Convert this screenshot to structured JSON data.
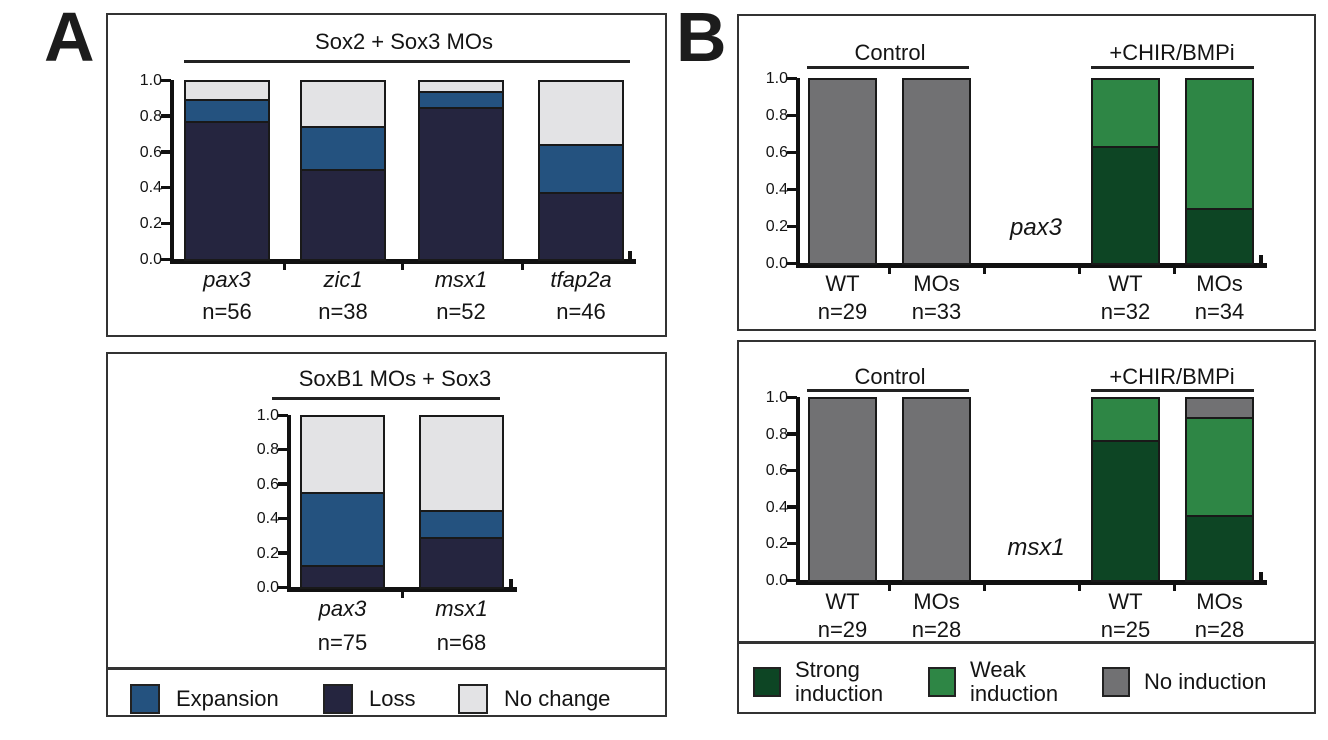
{
  "panels": {
    "a": {
      "letter": "A"
    },
    "b": {
      "letter": "B"
    }
  },
  "colors": {
    "expansion": "#24527f",
    "loss": "#25253f",
    "no_change": "#e3e3e5",
    "strong_induction": "#0d4524",
    "weak_induction": "#2e8645",
    "no_induction": "#717173"
  },
  "legend_a": {
    "items": [
      {
        "key": "expansion",
        "label": "Expansion"
      },
      {
        "key": "loss",
        "label": "Loss"
      },
      {
        "key": "no_change",
        "label": "No change"
      }
    ]
  },
  "legend_b": {
    "items": [
      {
        "key": "strong_induction",
        "line1": "Strong",
        "line2": "induction"
      },
      {
        "key": "weak_induction",
        "line1": "Weak",
        "line2": "induction"
      },
      {
        "key": "no_induction",
        "line1": "No induction",
        "line2": ""
      }
    ]
  },
  "chart_data": [
    {
      "id": "a1",
      "type": "bar",
      "stacked": true,
      "title": "Sox2 + Sox3 MOs",
      "ylim": [
        0,
        1
      ],
      "yticks": [
        "1.0",
        "0.8",
        "0.6",
        "0.4",
        "0.2",
        "0.0"
      ],
      "grid": false,
      "categories": [
        "pax3",
        "zic1",
        "msx1",
        "tfap2a"
      ],
      "italic_categories": true,
      "n_labels": [
        "n=56",
        "n=38",
        "n=52",
        "n=46"
      ],
      "series": [
        {
          "name": "Loss",
          "key": "loss",
          "values": [
            0.77,
            0.5,
            0.85,
            0.37
          ]
        },
        {
          "name": "Expansion",
          "key": "expansion",
          "values": [
            0.12,
            0.24,
            0.09,
            0.27
          ]
        },
        {
          "name": "No change",
          "key": "no_change",
          "values": [
            0.11,
            0.26,
            0.06,
            0.36
          ]
        }
      ]
    },
    {
      "id": "a2",
      "type": "bar",
      "stacked": true,
      "title": "SoxB1 MOs + Sox3",
      "ylim": [
        0,
        1
      ],
      "yticks": [
        "1.0",
        "0.8",
        "0.6",
        "0.4",
        "0.2",
        "0.0"
      ],
      "grid": false,
      "categories": [
        "pax3",
        "msx1"
      ],
      "italic_categories": true,
      "n_labels": [
        "n=75",
        "n=68"
      ],
      "series": [
        {
          "name": "Loss",
          "key": "loss",
          "values": [
            0.12,
            0.28
          ]
        },
        {
          "name": "Expansion",
          "key": "expansion",
          "values": [
            0.43,
            0.16
          ]
        },
        {
          "name": "No change",
          "key": "no_change",
          "values": [
            0.45,
            0.56
          ]
        }
      ]
    },
    {
      "id": "b1",
      "type": "bar",
      "stacked": true,
      "gene_label": "pax3",
      "group_headers": [
        {
          "label": "Control"
        },
        {
          "label": "+CHIR/BMPi"
        }
      ],
      "ylim": [
        0,
        1
      ],
      "yticks": [
        "1.0",
        "0.8",
        "0.6",
        "0.4",
        "0.2",
        "0.0"
      ],
      "grid": false,
      "categories": [
        "WT",
        "MOs",
        "WT",
        "MOs"
      ],
      "italic_categories": false,
      "n_labels": [
        "n=29",
        "n=33",
        "n=32",
        "n=34"
      ],
      "series": [
        {
          "name": "Strong induction",
          "key": "strong_induction",
          "values": [
            0,
            0,
            0.63,
            0.29
          ]
        },
        {
          "name": "Weak induction",
          "key": "weak_induction",
          "values": [
            0,
            0,
            0.37,
            0.71
          ]
        },
        {
          "name": "No induction",
          "key": "no_induction",
          "values": [
            1.0,
            1.0,
            0,
            0
          ]
        }
      ]
    },
    {
      "id": "b2",
      "type": "bar",
      "stacked": true,
      "gene_label": "msx1",
      "group_headers": [
        {
          "label": "Control"
        },
        {
          "label": "+CHIR/BMPi"
        }
      ],
      "ylim": [
        0,
        1
      ],
      "yticks": [
        "1.0",
        "0.8",
        "0.6",
        "0.4",
        "0.2",
        "0.0"
      ],
      "grid": false,
      "categories": [
        "WT",
        "MOs",
        "WT",
        "MOs"
      ],
      "italic_categories": false,
      "n_labels": [
        "n=29",
        "n=28",
        "n=25",
        "n=28"
      ],
      "series": [
        {
          "name": "Strong induction",
          "key": "strong_induction",
          "values": [
            0,
            0,
            0.76,
            0.35
          ]
        },
        {
          "name": "Weak induction",
          "key": "weak_induction",
          "values": [
            0,
            0,
            0.24,
            0.54
          ]
        },
        {
          "name": "No induction",
          "key": "no_induction",
          "values": [
            1.0,
            1.0,
            0,
            0.11
          ]
        }
      ]
    }
  ]
}
